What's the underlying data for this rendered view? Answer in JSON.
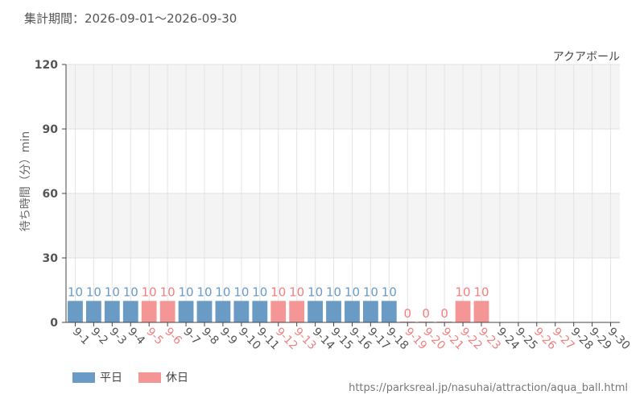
{
  "header": {
    "period_label": "集計期間：2026-09-01～2026-09-30"
  },
  "footer": {
    "url": "https://parksreal.jp/nasuhai/attraction/aqua_ball.html"
  },
  "colors": {
    "weekday": "#6a9bc4",
    "holiday": "#f59696",
    "weekday_text": "#555555",
    "holiday_text": "#f08080"
  },
  "chart_data": {
    "type": "bar",
    "title": "アクアボール",
    "ylabel": "待ち時間（分）min",
    "xlabel": "",
    "ylim": [
      0,
      120
    ],
    "yticks": [
      0,
      30,
      60,
      90,
      120
    ],
    "grid": true,
    "legend_position": "bottom-left",
    "categories": [
      "9-1",
      "9-2",
      "9-3",
      "9-4",
      "9-5",
      "9-6",
      "9-7",
      "9-8",
      "9-9",
      "9-10",
      "9-11",
      "9-12",
      "9-13",
      "9-14",
      "9-15",
      "9-16",
      "9-17",
      "9-18",
      "9-19",
      "9-20",
      "9-21",
      "9-22",
      "9-23",
      "9-24",
      "9-25",
      "9-26",
      "9-27",
      "9-28",
      "9-29",
      "9-30"
    ],
    "day_types": [
      "weekday",
      "weekday",
      "weekday",
      "weekday",
      "holiday",
      "holiday",
      "weekday",
      "weekday",
      "weekday",
      "weekday",
      "weekday",
      "holiday",
      "holiday",
      "weekday",
      "weekday",
      "weekday",
      "weekday",
      "weekday",
      "holiday",
      "holiday",
      "holiday",
      "holiday",
      "holiday",
      "weekday",
      "weekday",
      "holiday",
      "holiday",
      "weekday",
      "weekday",
      "weekday"
    ],
    "values": [
      10,
      10,
      10,
      10,
      10,
      10,
      10,
      10,
      10,
      10,
      10,
      10,
      10,
      10,
      10,
      10,
      10,
      10,
      0,
      0,
      0,
      10,
      10,
      null,
      null,
      null,
      null,
      null,
      null,
      null
    ],
    "series": [
      {
        "name": "平日",
        "type": "weekday"
      },
      {
        "name": "休日",
        "type": "holiday"
      }
    ]
  }
}
